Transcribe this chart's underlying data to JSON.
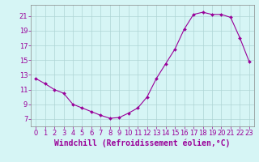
{
  "hours": [
    0,
    1,
    2,
    3,
    4,
    5,
    6,
    7,
    8,
    9,
    10,
    11,
    12,
    13,
    14,
    15,
    16,
    17,
    18,
    19,
    20,
    21,
    22,
    23
  ],
  "values": [
    12.5,
    11.8,
    11.0,
    10.5,
    9.0,
    8.5,
    8.0,
    7.5,
    7.1,
    7.2,
    7.8,
    8.5,
    10.0,
    12.5,
    14.5,
    16.5,
    19.2,
    21.2,
    21.5,
    21.2,
    21.2,
    20.8,
    18.0,
    14.8
  ],
  "line_color": "#990099",
  "marker": "D",
  "marker_size": 2.0,
  "bg_color": "#d6f5f5",
  "grid_color": "#aed4d4",
  "xlabel": "Windchill (Refroidissement éolien,°C)",
  "xlabel_fontsize": 7,
  "tick_fontsize": 6,
  "ylim": [
    6.0,
    22.5
  ],
  "yticks": [
    7,
    9,
    11,
    13,
    15,
    17,
    19,
    21
  ],
  "xlim": [
    -0.5,
    23.5
  ],
  "figsize": [
    3.2,
    2.0
  ],
  "dpi": 100
}
